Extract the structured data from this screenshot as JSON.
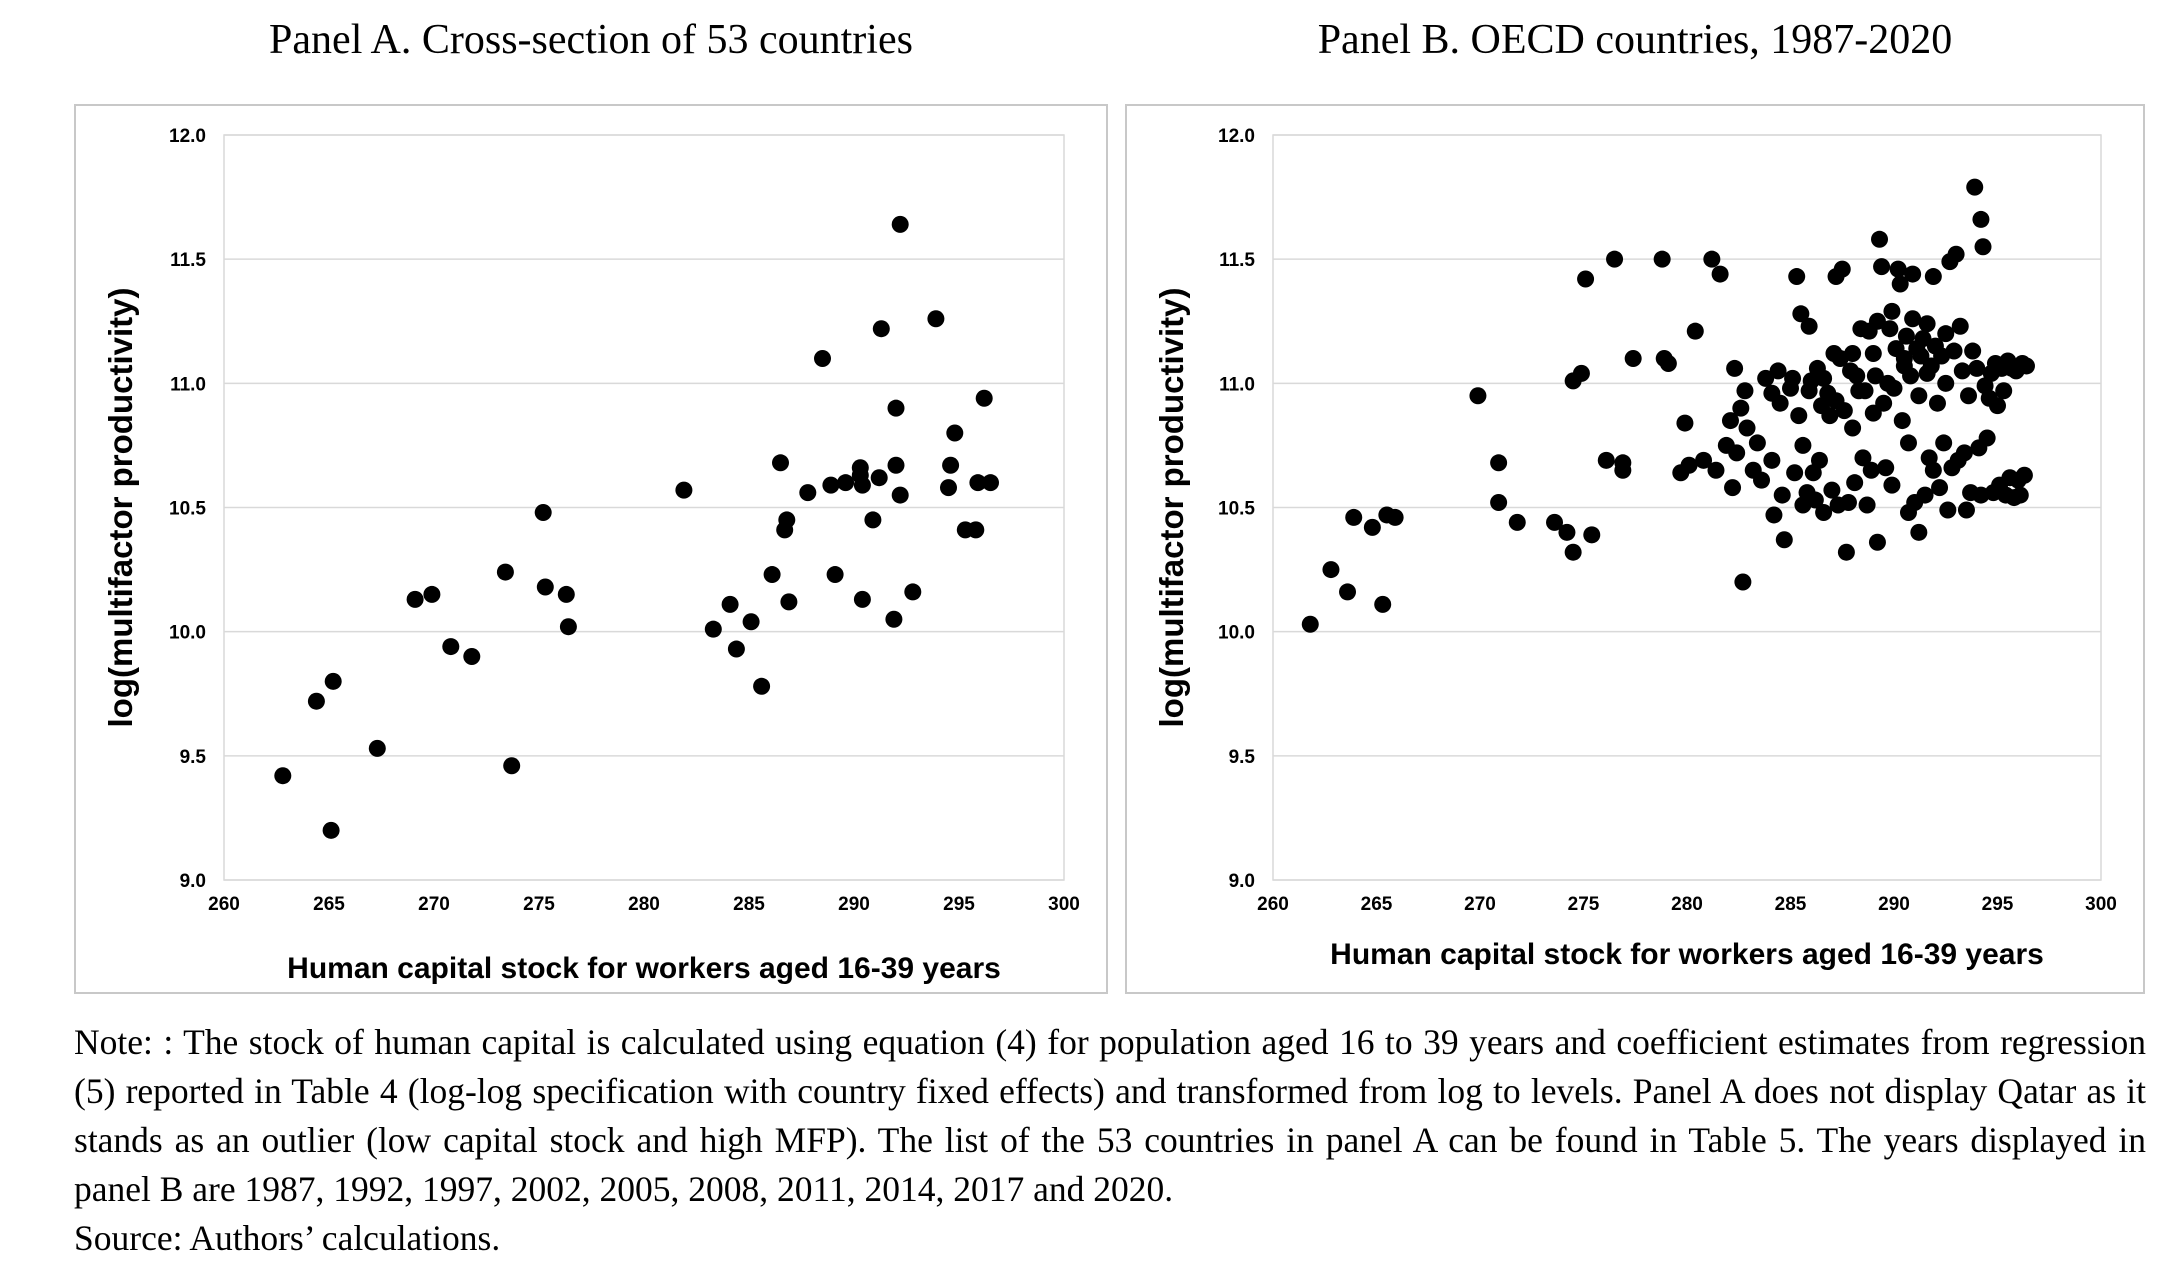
{
  "chart_data": [
    {
      "type": "scatter",
      "title": "Panel A. Cross-section of 53 countries",
      "xlabel": "Human capital stock for workers aged 16-39 years",
      "ylabel": "log(multifactor productivity)",
      "xlim": [
        260,
        300
      ],
      "ylim": [
        9.0,
        12.0
      ],
      "xticks": [
        "260",
        "265",
        "270",
        "275",
        "280",
        "285",
        "290",
        "295",
        "300"
      ],
      "yticks": [
        "9.0",
        "9.5",
        "10.0",
        "10.5",
        "11.0",
        "11.5",
        "12.0"
      ],
      "grid": "horizontal",
      "marker_color": "#000000",
      "points": [
        [
          262.8,
          9.42
        ],
        [
          264.4,
          9.72
        ],
        [
          265.2,
          9.8
        ],
        [
          265.1,
          9.2
        ],
        [
          267.3,
          9.53
        ],
        [
          269.1,
          10.13
        ],
        [
          269.9,
          10.15
        ],
        [
          270.8,
          9.94
        ],
        [
          271.8,
          9.9
        ],
        [
          273.4,
          10.24
        ],
        [
          273.7,
          9.46
        ],
        [
          275.2,
          10.48
        ],
        [
          275.3,
          10.18
        ],
        [
          276.3,
          10.15
        ],
        [
          276.4,
          10.02
        ],
        [
          281.9,
          10.57
        ],
        [
          283.3,
          10.01
        ],
        [
          284.1,
          10.11
        ],
        [
          284.4,
          9.93
        ],
        [
          285.1,
          10.04
        ],
        [
          285.6,
          9.78
        ],
        [
          286.1,
          10.23
        ],
        [
          286.5,
          10.68
        ],
        [
          286.7,
          10.41
        ],
        [
          286.8,
          10.45
        ],
        [
          286.9,
          10.12
        ],
        [
          287.8,
          10.56
        ],
        [
          288.5,
          11.1
        ],
        [
          288.9,
          10.59
        ],
        [
          289.1,
          10.23
        ],
        [
          289.6,
          10.6
        ],
        [
          290.3,
          10.66
        ],
        [
          290.3,
          10.63
        ],
        [
          290.4,
          10.59
        ],
        [
          290.4,
          10.13
        ],
        [
          290.9,
          10.45
        ],
        [
          291.2,
          10.62
        ],
        [
          291.3,
          11.22
        ],
        [
          291.9,
          10.05
        ],
        [
          292.0,
          10.9
        ],
        [
          292.0,
          10.67
        ],
        [
          292.2,
          10.55
        ],
        [
          292.2,
          11.64
        ],
        [
          292.8,
          10.16
        ],
        [
          293.9,
          11.26
        ],
        [
          294.5,
          10.58
        ],
        [
          294.6,
          10.67
        ],
        [
          294.8,
          10.8
        ],
        [
          295.3,
          10.41
        ],
        [
          295.8,
          10.41
        ],
        [
          295.9,
          10.6
        ],
        [
          296.2,
          10.94
        ],
        [
          296.5,
          10.6
        ]
      ]
    },
    {
      "type": "scatter",
      "title": "Panel B. OECD countries, 1987-2020",
      "xlabel": "Human capital stock for workers aged 16-39 years",
      "ylabel": "log(multifactor productivity)",
      "xlim": [
        260,
        300
      ],
      "ylim": [
        9.0,
        12.0
      ],
      "xticks": [
        "260",
        "265",
        "270",
        "275",
        "280",
        "285",
        "290",
        "295",
        "300"
      ],
      "yticks": [
        "9.0",
        "9.5",
        "10.0",
        "10.5",
        "11.0",
        "11.5",
        "12.0"
      ],
      "grid": "horizontal",
      "marker_color": "#000000",
      "points": [
        [
          261.8,
          10.03
        ],
        [
          262.8,
          10.25
        ],
        [
          263.6,
          10.16
        ],
        [
          263.9,
          10.46
        ],
        [
          264.8,
          10.42
        ],
        [
          265.3,
          10.11
        ],
        [
          265.5,
          10.47
        ],
        [
          265.9,
          10.46
        ],
        [
          269.9,
          10.95
        ],
        [
          270.9,
          10.68
        ],
        [
          270.9,
          10.52
        ],
        [
          271.8,
          10.44
        ],
        [
          273.6,
          10.44
        ],
        [
          274.2,
          10.4
        ],
        [
          274.5,
          10.32
        ],
        [
          274.5,
          11.01
        ],
        [
          274.9,
          11.04
        ],
        [
          275.1,
          11.42
        ],
        [
          275.4,
          10.39
        ],
        [
          276.1,
          10.69
        ],
        [
          276.5,
          11.5
        ],
        [
          276.9,
          10.68
        ],
        [
          276.9,
          10.65
        ],
        [
          277.4,
          11.1
        ],
        [
          278.8,
          11.5
        ],
        [
          278.9,
          11.1
        ],
        [
          279.1,
          11.08
        ],
        [
          279.7,
          10.64
        ],
        [
          279.9,
          10.84
        ],
        [
          280.1,
          10.67
        ],
        [
          280.4,
          11.21
        ],
        [
          280.8,
          10.69
        ],
        [
          281.2,
          11.5
        ],
        [
          281.4,
          10.65
        ],
        [
          281.6,
          11.44
        ],
        [
          281.9,
          10.75
        ],
        [
          282.1,
          10.85
        ],
        [
          282.2,
          10.58
        ],
        [
          282.3,
          11.06
        ],
        [
          282.4,
          10.72
        ],
        [
          282.6,
          10.9
        ],
        [
          282.7,
          10.2
        ],
        [
          282.8,
          10.97
        ],
        [
          282.9,
          10.82
        ],
        [
          283.2,
          10.65
        ],
        [
          283.4,
          10.76
        ],
        [
          283.6,
          10.61
        ],
        [
          283.8,
          11.02
        ],
        [
          284.1,
          10.96
        ],
        [
          284.1,
          10.69
        ],
        [
          284.2,
          10.47
        ],
        [
          284.4,
          11.05
        ],
        [
          284.5,
          10.92
        ],
        [
          284.6,
          10.55
        ],
        [
          284.7,
          10.37
        ],
        [
          285.0,
          10.98
        ],
        [
          285.1,
          11.02
        ],
        [
          285.2,
          10.64
        ],
        [
          285.3,
          11.43
        ],
        [
          285.4,
          10.87
        ],
        [
          285.5,
          11.28
        ],
        [
          285.6,
          10.51
        ],
        [
          285.6,
          10.75
        ],
        [
          285.8,
          10.56
        ],
        [
          285.9,
          11.23
        ],
        [
          285.9,
          10.97
        ],
        [
          286.0,
          11.01
        ],
        [
          286.1,
          10.64
        ],
        [
          286.2,
          10.53
        ],
        [
          286.3,
          11.06
        ],
        [
          286.4,
          10.69
        ],
        [
          286.5,
          10.91
        ],
        [
          286.6,
          10.48
        ],
        [
          286.6,
          11.02
        ],
        [
          286.8,
          10.96
        ],
        [
          286.9,
          10.87
        ],
        [
          287.0,
          10.57
        ],
        [
          287.1,
          11.12
        ],
        [
          287.2,
          11.43
        ],
        [
          287.2,
          10.93
        ],
        [
          287.3,
          10.51
        ],
        [
          287.4,
          11.1
        ],
        [
          287.5,
          11.46
        ],
        [
          287.6,
          10.89
        ],
        [
          287.7,
          10.32
        ],
        [
          287.8,
          10.52
        ],
        [
          287.9,
          11.05
        ],
        [
          288.0,
          11.12
        ],
        [
          288.0,
          10.82
        ],
        [
          288.1,
          10.6
        ],
        [
          288.2,
          11.03
        ],
        [
          288.3,
          10.97
        ],
        [
          288.4,
          11.22
        ],
        [
          288.5,
          10.7
        ],
        [
          288.6,
          10.97
        ],
        [
          288.7,
          10.51
        ],
        [
          288.8,
          11.21
        ],
        [
          288.9,
          10.65
        ],
        [
          289.0,
          10.88
        ],
        [
          289.0,
          11.12
        ],
        [
          289.1,
          11.03
        ],
        [
          289.2,
          10.36
        ],
        [
          289.2,
          11.25
        ],
        [
          289.3,
          11.58
        ],
        [
          289.4,
          11.47
        ],
        [
          289.5,
          10.92
        ],
        [
          289.6,
          10.66
        ],
        [
          289.7,
          11.0
        ],
        [
          289.8,
          11.22
        ],
        [
          289.9,
          10.59
        ],
        [
          289.9,
          11.29
        ],
        [
          290.0,
          10.98
        ],
        [
          290.1,
          11.14
        ],
        [
          290.2,
          11.46
        ],
        [
          290.3,
          11.4
        ],
        [
          290.4,
          10.85
        ],
        [
          290.5,
          11.07
        ],
        [
          290.5,
          11.1
        ],
        [
          290.6,
          11.19
        ],
        [
          290.7,
          10.48
        ],
        [
          290.7,
          10.76
        ],
        [
          290.8,
          11.03
        ],
        [
          290.9,
          11.26
        ],
        [
          290.9,
          11.44
        ],
        [
          291.0,
          10.52
        ],
        [
          291.1,
          11.14
        ],
        [
          291.2,
          10.4
        ],
        [
          291.2,
          10.95
        ],
        [
          291.3,
          11.11
        ],
        [
          291.4,
          11.18
        ],
        [
          291.5,
          10.55
        ],
        [
          291.6,
          11.04
        ],
        [
          291.6,
          11.24
        ],
        [
          291.7,
          10.7
        ],
        [
          291.8,
          11.07
        ],
        [
          291.9,
          11.43
        ],
        [
          291.9,
          10.65
        ],
        [
          292.0,
          11.15
        ],
        [
          292.1,
          10.92
        ],
        [
          292.2,
          10.58
        ],
        [
          292.3,
          11.11
        ],
        [
          292.4,
          10.76
        ],
        [
          292.5,
          11.2
        ],
        [
          292.5,
          11.0
        ],
        [
          292.6,
          10.49
        ],
        [
          292.7,
          11.49
        ],
        [
          292.8,
          10.66
        ],
        [
          292.9,
          11.13
        ],
        [
          293.0,
          11.52
        ],
        [
          293.1,
          10.69
        ],
        [
          293.2,
          11.23
        ],
        [
          293.3,
          11.05
        ],
        [
          293.4,
          10.72
        ],
        [
          293.5,
          10.49
        ],
        [
          293.6,
          10.95
        ],
        [
          293.7,
          10.56
        ],
        [
          293.8,
          11.13
        ],
        [
          293.9,
          11.79
        ],
        [
          294.0,
          11.06
        ],
        [
          294.1,
          10.74
        ],
        [
          294.2,
          10.55
        ],
        [
          294.2,
          11.66
        ],
        [
          294.3,
          11.55
        ],
        [
          294.4,
          10.99
        ],
        [
          294.5,
          10.78
        ],
        [
          294.6,
          10.94
        ],
        [
          294.7,
          11.04
        ],
        [
          294.8,
          10.56
        ],
        [
          294.9,
          11.08
        ],
        [
          295.0,
          10.91
        ],
        [
          295.1,
          10.59
        ],
        [
          295.2,
          11.06
        ],
        [
          295.3,
          10.97
        ],
        [
          295.4,
          10.55
        ],
        [
          295.5,
          11.09
        ],
        [
          295.6,
          10.62
        ],
        [
          295.7,
          11.06
        ],
        [
          295.8,
          10.54
        ],
        [
          295.9,
          11.05
        ],
        [
          296.0,
          10.61
        ],
        [
          296.1,
          10.55
        ],
        [
          296.2,
          11.08
        ],
        [
          296.3,
          10.63
        ],
        [
          296.4,
          11.07
        ]
      ]
    }
  ],
  "note": {
    "line1": "Note: : The stock of human capital is calculated using equation (4) for population aged 16 to 39 years and coefficient estimates from regression (5) reported in Table 4 (log-log specification with country fixed effects) and transformed from log to levels. Panel A does not display Qatar as it stands as an outlier (low capital stock and high MFP). The list of the 53 countries in panel A can be found in Table 5. The years displayed in panel B are 1987, 1992, 1997, 2002, 2005, 2008, 2011, 2014, 2017 and 2020.",
    "source": "Source: Authors’ calculations."
  }
}
